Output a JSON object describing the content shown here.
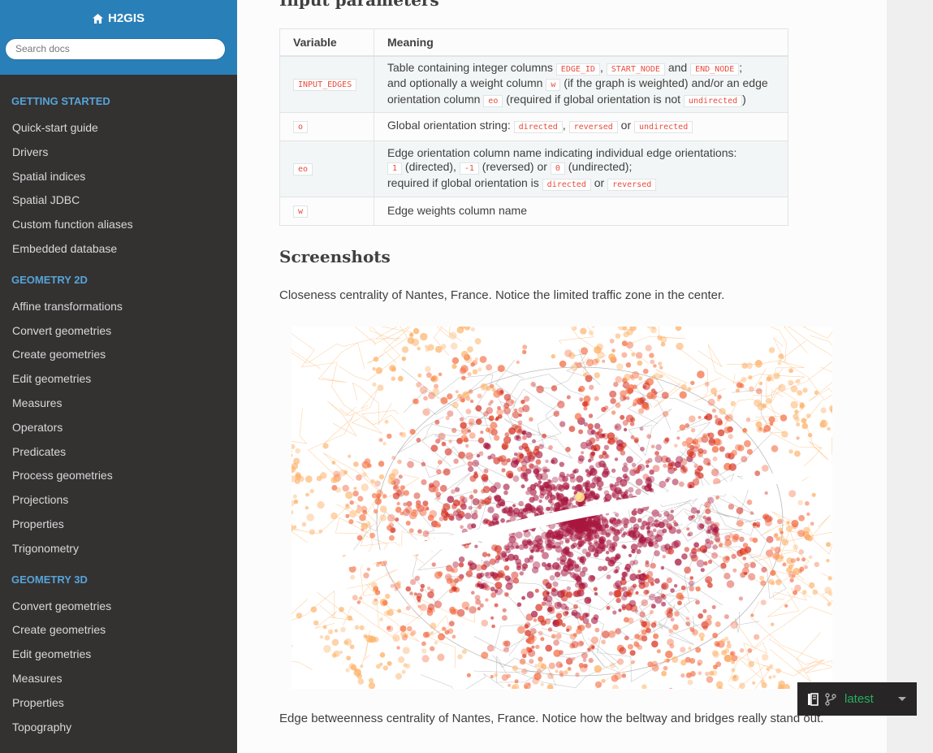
{
  "sidebar": {
    "brand": "H2GIS",
    "search_placeholder": "Search docs",
    "sections": [
      {
        "caption": "GETTING STARTED",
        "items": [
          "Quick-start guide",
          "Drivers",
          "Spatial indices",
          "Spatial JDBC",
          "Custom function aliases",
          "Embedded database"
        ]
      },
      {
        "caption": "GEOMETRY 2D",
        "items": [
          "Affine transformations",
          "Convert geometries",
          "Create geometries",
          "Edit geometries",
          "Measures",
          "Operators",
          "Predicates",
          "Process geometries",
          "Projections",
          "Properties",
          "Trigonometry"
        ]
      },
      {
        "caption": "GEOMETRY 3D",
        "items": [
          "Convert geometries",
          "Create geometries",
          "Edit geometries",
          "Measures",
          "Properties",
          "Topography"
        ]
      }
    ]
  },
  "content": {
    "cut_heading": "Input parameters",
    "table": {
      "headers": [
        "Variable",
        "Meaning"
      ],
      "rows": {
        "r1": {
          "var": "INPUT_EDGES",
          "t1": "Table containing integer columns",
          "c1": "EDGE_ID",
          "t2": ",",
          "c2": "START_NODE",
          "t3": "and",
          "c3": "END_NODE",
          "t4": ";",
          "t5": "and optionally a weight column",
          "c4": "w",
          "t6": "(if the graph is weighted) and/or an edge",
          "t7": "orientation column",
          "c5": "eo",
          "t8": "(required if global orientation is not",
          "c6": "undirected",
          "t9": ")"
        },
        "r2": {
          "var": "o",
          "t1": "Global orientation string:",
          "c1": "directed",
          "t2": ",",
          "c2": "reversed",
          "t3": "or",
          "c3": "undirected"
        },
        "r3": {
          "var": "eo",
          "t1": "Edge orientation column name indicating individual edge orientations:",
          "c1": "1",
          "t2": "(directed),",
          "c2": "-1",
          "t3": "(reversed) or",
          "c3": "0",
          "t4": "(undirected);",
          "t5": "required if global orientation is",
          "c4": "directed",
          "t6": "or",
          "c5": "reversed"
        },
        "r4": {
          "var": "w",
          "t1": "Edge weights column name"
        }
      }
    },
    "screenshots_heading": "Screenshots",
    "para1": "Closeness centrality of Nantes, France. Notice the limited traffic zone in the center.",
    "para2": "Edge betweenness centrality of Nantes, France. Notice how the beltway and bridges really stand out."
  },
  "versions": {
    "label": "latest",
    "icons": [
      "book-icon",
      "branch-icon",
      "caret-down-icon"
    ]
  },
  "map_colors": {
    "dark": "#a8173f",
    "red": "#d7301f",
    "orange": "#f46d43",
    "light": "#fdae61",
    "yellow": "#fee08b",
    "road": "#9a9a9a"
  }
}
